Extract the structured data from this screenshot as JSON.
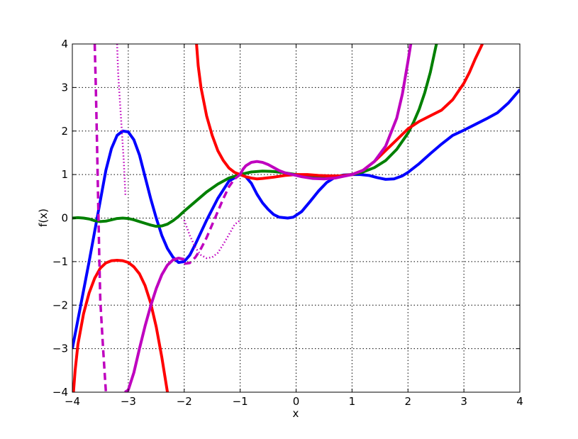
{
  "chart_data": {
    "type": "line",
    "title": "",
    "xlabel": "x",
    "ylabel": "f(x)",
    "xlim": [
      -4,
      4
    ],
    "ylim": [
      -4,
      4
    ],
    "grid": true,
    "x_ticks": [
      -4,
      -3,
      -2,
      -1,
      0,
      1,
      2,
      3,
      4
    ],
    "y_ticks": [
      -4,
      -3,
      -2,
      -1,
      0,
      1,
      2,
      3,
      4
    ],
    "x_tick_labels": [
      "−4",
      "−3",
      "−2",
      "−1",
      "0",
      "1",
      "2",
      "3",
      "4"
    ],
    "y_tick_labels": [
      "−4",
      "−3",
      "−2",
      "−1",
      "0",
      "1",
      "2",
      "3",
      "4"
    ],
    "series": [
      {
        "color": "#0000ff",
        "style": "solid",
        "points": [
          [
            -4.0,
            -3.0
          ],
          [
            -3.85,
            -2.0
          ],
          [
            -3.7,
            -1.0
          ],
          [
            -3.6,
            -0.3
          ],
          [
            -3.5,
            0.4
          ],
          [
            -3.4,
            1.1
          ],
          [
            -3.3,
            1.6
          ],
          [
            -3.2,
            1.9
          ],
          [
            -3.1,
            2.0
          ],
          [
            -3.0,
            1.98
          ],
          [
            -2.9,
            1.8
          ],
          [
            -2.8,
            1.45
          ],
          [
            -2.7,
            0.95
          ],
          [
            -2.6,
            0.45
          ],
          [
            -2.5,
            0.0
          ],
          [
            -2.4,
            -0.4
          ],
          [
            -2.3,
            -0.7
          ],
          [
            -2.2,
            -0.9
          ],
          [
            -2.1,
            -1.02
          ],
          [
            -2.0,
            -1.0
          ],
          [
            -1.9,
            -0.85
          ],
          [
            -1.8,
            -0.6
          ],
          [
            -1.6,
            -0.05
          ],
          [
            -1.4,
            0.45
          ],
          [
            -1.2,
            0.85
          ],
          [
            -1.0,
            1.0
          ],
          [
            -0.9,
            0.95
          ],
          [
            -0.8,
            0.8
          ],
          [
            -0.7,
            0.55
          ],
          [
            -0.6,
            0.35
          ],
          [
            -0.5,
            0.2
          ],
          [
            -0.4,
            0.08
          ],
          [
            -0.3,
            0.02
          ],
          [
            -0.15,
            0.0
          ],
          [
            -0.05,
            0.02
          ],
          [
            0.1,
            0.15
          ],
          [
            0.25,
            0.38
          ],
          [
            0.4,
            0.62
          ],
          [
            0.55,
            0.82
          ],
          [
            0.7,
            0.94
          ],
          [
            0.85,
            0.99
          ],
          [
            1.0,
            1.0
          ],
          [
            1.15,
            1.0
          ],
          [
            1.3,
            0.98
          ],
          [
            1.45,
            0.93
          ],
          [
            1.6,
            0.89
          ],
          [
            1.75,
            0.9
          ],
          [
            1.9,
            0.97
          ],
          [
            2.0,
            1.05
          ],
          [
            2.2,
            1.25
          ],
          [
            2.4,
            1.48
          ],
          [
            2.6,
            1.7
          ],
          [
            2.8,
            1.9
          ],
          [
            3.0,
            2.02
          ],
          [
            3.2,
            2.15
          ],
          [
            3.4,
            2.28
          ],
          [
            3.6,
            2.42
          ],
          [
            3.8,
            2.65
          ],
          [
            4.0,
            2.95
          ]
        ]
      },
      {
        "color": "#008000",
        "style": "solid",
        "points": [
          [
            -4.0,
            0.0
          ],
          [
            -3.9,
            0.01
          ],
          [
            -3.8,
            0.0
          ],
          [
            -3.7,
            -0.02
          ],
          [
            -3.6,
            -0.06
          ],
          [
            -3.5,
            -0.08
          ],
          [
            -3.4,
            -0.07
          ],
          [
            -3.3,
            -0.04
          ],
          [
            -3.2,
            -0.01
          ],
          [
            -3.1,
            0.0
          ],
          [
            -3.0,
            -0.01
          ],
          [
            -2.9,
            -0.04
          ],
          [
            -2.8,
            -0.08
          ],
          [
            -2.7,
            -0.12
          ],
          [
            -2.6,
            -0.16
          ],
          [
            -2.5,
            -0.19
          ],
          [
            -2.4,
            -0.18
          ],
          [
            -2.3,
            -0.14
          ],
          [
            -2.2,
            -0.06
          ],
          [
            -2.1,
            0.04
          ],
          [
            -2.0,
            0.16
          ],
          [
            -1.8,
            0.38
          ],
          [
            -1.6,
            0.6
          ],
          [
            -1.4,
            0.78
          ],
          [
            -1.2,
            0.92
          ],
          [
            -1.0,
            1.0
          ],
          [
            -0.8,
            1.06
          ],
          [
            -0.6,
            1.08
          ],
          [
            -0.4,
            1.07
          ],
          [
            -0.2,
            1.04
          ],
          [
            0.0,
            1.0
          ],
          [
            0.2,
            0.97
          ],
          [
            0.4,
            0.95
          ],
          [
            0.6,
            0.95
          ],
          [
            0.8,
            0.97
          ],
          [
            1.0,
            1.0
          ],
          [
            1.2,
            1.06
          ],
          [
            1.4,
            1.16
          ],
          [
            1.6,
            1.32
          ],
          [
            1.8,
            1.58
          ],
          [
            2.0,
            1.95
          ],
          [
            2.1,
            2.2
          ],
          [
            2.2,
            2.5
          ],
          [
            2.3,
            2.88
          ],
          [
            2.4,
            3.35
          ],
          [
            2.5,
            3.95
          ],
          [
            2.51,
            4.0
          ]
        ]
      },
      {
        "color": "#ff0000",
        "style": "solid",
        "points": [
          [
            -3.98,
            -4.0
          ],
          [
            -3.95,
            -3.5
          ],
          [
            -3.9,
            -2.9
          ],
          [
            -3.8,
            -2.2
          ],
          [
            -3.7,
            -1.72
          ],
          [
            -3.6,
            -1.38
          ],
          [
            -3.5,
            -1.15
          ],
          [
            -3.4,
            -1.03
          ],
          [
            -3.3,
            -0.98
          ],
          [
            -3.2,
            -0.97
          ],
          [
            -3.1,
            -0.98
          ],
          [
            -3.0,
            -1.02
          ],
          [
            -2.9,
            -1.12
          ],
          [
            -2.8,
            -1.28
          ],
          [
            -2.7,
            -1.55
          ],
          [
            -2.6,
            -1.95
          ],
          [
            -2.5,
            -2.5
          ],
          [
            -2.4,
            -3.2
          ],
          [
            -2.3,
            -4.0
          ]
        ]
      },
      {
        "color": "#ff0000",
        "style": "solid",
        "points": [
          [
            -1.78,
            4.0
          ],
          [
            -1.75,
            3.5
          ],
          [
            -1.7,
            3.0
          ],
          [
            -1.6,
            2.35
          ],
          [
            -1.5,
            1.9
          ],
          [
            -1.4,
            1.55
          ],
          [
            -1.3,
            1.32
          ],
          [
            -1.2,
            1.15
          ],
          [
            -1.1,
            1.05
          ],
          [
            -1.0,
            1.0
          ],
          [
            -0.9,
            0.95
          ],
          [
            -0.8,
            0.92
          ],
          [
            -0.7,
            0.9
          ],
          [
            -0.6,
            0.91
          ],
          [
            -0.4,
            0.94
          ],
          [
            -0.2,
            0.98
          ],
          [
            0.0,
            1.0
          ],
          [
            0.2,
            1.0
          ],
          [
            0.4,
            0.98
          ],
          [
            0.6,
            0.97
          ],
          [
            0.8,
            0.97
          ],
          [
            1.0,
            1.0
          ],
          [
            1.2,
            1.1
          ],
          [
            1.4,
            1.3
          ],
          [
            1.6,
            1.55
          ],
          [
            1.8,
            1.8
          ],
          [
            2.0,
            2.05
          ],
          [
            2.2,
            2.22
          ],
          [
            2.4,
            2.35
          ],
          [
            2.6,
            2.48
          ],
          [
            2.8,
            2.72
          ],
          [
            3.0,
            3.1
          ],
          [
            3.1,
            3.35
          ],
          [
            3.2,
            3.65
          ],
          [
            3.33,
            4.0
          ]
        ]
      },
      {
        "color": "#bf00bf",
        "style": "solid",
        "points": [
          [
            -3.06,
            -4.0
          ],
          [
            -3.0,
            -3.95
          ],
          [
            -2.9,
            -3.55
          ],
          [
            -2.8,
            -3.0
          ],
          [
            -2.7,
            -2.48
          ],
          [
            -2.6,
            -2.02
          ],
          [
            -2.5,
            -1.62
          ],
          [
            -2.4,
            -1.3
          ],
          [
            -2.3,
            -1.08
          ],
          [
            -2.2,
            -0.96
          ],
          [
            -2.1,
            -0.92
          ],
          [
            -2.0,
            -0.95
          ]
        ]
      },
      {
        "color": "#bf00bf",
        "style": "solid",
        "points": [
          [
            -1.0,
            1.0
          ],
          [
            -0.95,
            1.12
          ],
          [
            -0.9,
            1.2
          ],
          [
            -0.8,
            1.28
          ],
          [
            -0.7,
            1.3
          ],
          [
            -0.6,
            1.28
          ],
          [
            -0.5,
            1.23
          ],
          [
            -0.4,
            1.16
          ],
          [
            -0.3,
            1.09
          ],
          [
            -0.2,
            1.04
          ],
          [
            -0.1,
            1.01
          ],
          [
            0.0,
            0.98
          ],
          [
            0.1,
            0.95
          ],
          [
            0.2,
            0.93
          ],
          [
            0.3,
            0.91
          ],
          [
            0.5,
            0.9
          ],
          [
            0.7,
            0.92
          ],
          [
            0.85,
            0.96
          ],
          [
            1.0,
            1.0
          ],
          [
            1.2,
            1.1
          ],
          [
            1.4,
            1.3
          ],
          [
            1.6,
            1.65
          ],
          [
            1.8,
            2.3
          ],
          [
            1.9,
            2.85
          ],
          [
            2.0,
            3.6
          ],
          [
            2.05,
            4.0
          ]
        ]
      },
      {
        "color": "#bf00bf",
        "style": "dashed",
        "points": [
          [
            -3.6,
            4.0
          ],
          [
            -3.58,
            3.0
          ],
          [
            -3.56,
            1.8
          ],
          [
            -3.54,
            0.5
          ],
          [
            -3.52,
            -0.8
          ],
          [
            -3.5,
            -1.9
          ],
          [
            -3.45,
            -3.0
          ],
          [
            -3.4,
            -4.0
          ]
        ]
      },
      {
        "color": "#bf00bf",
        "style": "dashed",
        "points": [
          [
            -2.0,
            -1.05
          ],
          [
            -1.9,
            -1.03
          ],
          [
            -1.8,
            -0.9
          ],
          [
            -1.7,
            -0.7
          ],
          [
            -1.6,
            -0.45
          ],
          [
            -1.5,
            -0.15
          ],
          [
            -1.4,
            0.15
          ],
          [
            -1.3,
            0.45
          ],
          [
            -1.2,
            0.72
          ],
          [
            -1.1,
            0.9
          ],
          [
            -1.0,
            1.0
          ]
        ]
      },
      {
        "color": "#bf00bf",
        "style": "dotted",
        "points": [
          [
            -3.2,
            4.0
          ],
          [
            -3.18,
            3.3
          ],
          [
            -3.15,
            2.7
          ],
          [
            -3.12,
            2.1
          ],
          [
            -3.08,
            1.3
          ],
          [
            -3.05,
            0.5
          ]
        ]
      },
      {
        "color": "#bf00bf",
        "style": "dotted",
        "points": [
          [
            -2.0,
            -0.05
          ],
          [
            -1.9,
            -0.4
          ],
          [
            -1.8,
            -0.68
          ],
          [
            -1.7,
            -0.85
          ],
          [
            -1.6,
            -0.92
          ],
          [
            -1.5,
            -0.9
          ],
          [
            -1.4,
            -0.8
          ],
          [
            -1.3,
            -0.6
          ],
          [
            -1.2,
            -0.38
          ],
          [
            -1.1,
            -0.15
          ],
          [
            -1.0,
            -0.05
          ]
        ]
      }
    ]
  }
}
